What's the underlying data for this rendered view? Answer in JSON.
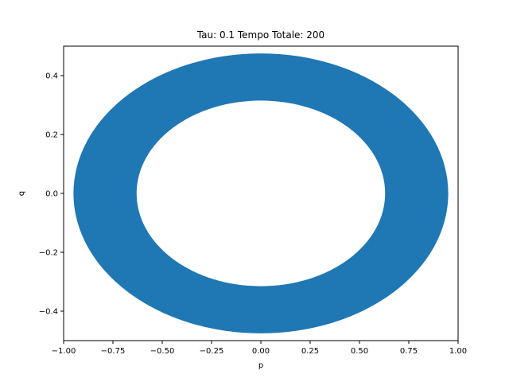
{
  "chart_data": {
    "type": "area",
    "title": "Tau: 0.1 Tempo Totale: 200",
    "xlabel": "p",
    "ylabel": "q",
    "xlim": [
      -1.0,
      1.0
    ],
    "ylim": [
      -0.5,
      0.5
    ],
    "xticks": [
      -1.0,
      -0.75,
      -0.5,
      -0.25,
      0.0,
      0.25,
      0.5,
      0.75,
      1.0
    ],
    "xtick_labels": [
      "−1.00",
      "−0.75",
      "−0.50",
      "−0.25",
      "0.00",
      "0.25",
      "0.50",
      "0.75",
      "1.00"
    ],
    "yticks": [
      -0.4,
      -0.2,
      0.0,
      0.2,
      0.4
    ],
    "ytick_labels": [
      "−0.4",
      "−0.2",
      "0.0",
      "0.2",
      "0.4"
    ],
    "grid": false,
    "color": "#1f77b4",
    "series": [
      {
        "shape": "ring",
        "outer": {
          "p_radius": 0.95,
          "q_radius": 0.475
        },
        "inner": {
          "p_radius": 0.63,
          "q_radius": 0.315
        }
      }
    ]
  }
}
